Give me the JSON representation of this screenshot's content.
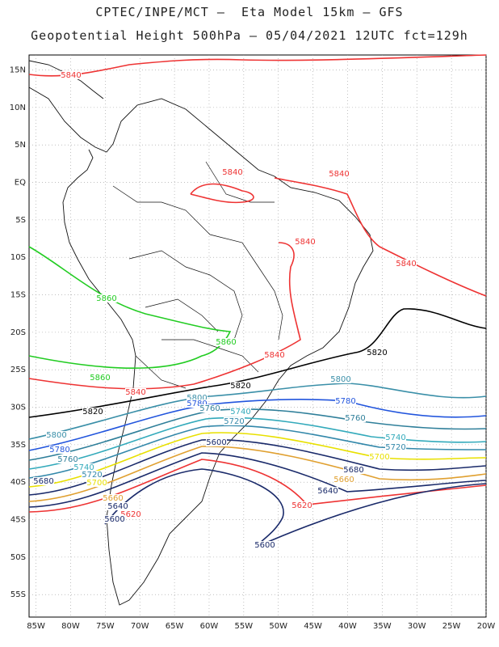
{
  "header": {
    "line1": "CPTEC/INPE/MCT –  Eta Model 15km – GFS",
    "line2": "Geopotential Height 500hPa – 05/04/2021 12UTC fct=129h"
  },
  "axes": {
    "lon_labels": [
      "85W",
      "80W",
      "75W",
      "70W",
      "65W",
      "60W",
      "55W",
      "50W",
      "45W",
      "40W",
      "35W",
      "30W",
      "25W",
      "20W"
    ],
    "lat_labels": [
      "15N",
      "10N",
      "5N",
      "EQ",
      "5S",
      "10S",
      "15S",
      "20S",
      "25S",
      "30S",
      "35S",
      "40S",
      "45S",
      "50S",
      "55S"
    ]
  },
  "map_data": {
    "type": "contour",
    "variable": "Geopotential Height 500hPa",
    "lon_range": [
      -86,
      -20
    ],
    "lat_range": [
      -58,
      17
    ],
    "grid": true,
    "contours": [
      {
        "level": "5840",
        "color": "#ee3333",
        "labels": [
          "5840",
          "5840",
          "5840",
          "5840",
          "5840",
          "5840",
          "5840"
        ]
      },
      {
        "level": "5820",
        "color": "#000000",
        "labels": [
          "5820",
          "5820",
          "5820"
        ]
      },
      {
        "level": "5860",
        "color": "#22cc22",
        "labels": [
          "5860",
          "5860",
          "5860"
        ]
      },
      {
        "level": "5800",
        "color": "#3a8fa8",
        "labels": [
          "5800",
          "5800",
          "5800"
        ]
      },
      {
        "level": "5780",
        "color": "#2255dd",
        "labels": [
          "5780",
          "5780",
          "5780"
        ]
      },
      {
        "level": "5760",
        "color": "#2f7f9a",
        "labels": [
          "5760",
          "5760",
          "5760"
        ]
      },
      {
        "level": "5740",
        "color": "#33aabb",
        "labels": [
          "5740",
          "5740",
          "5740"
        ]
      },
      {
        "level": "5720",
        "color": "#3388aa",
        "labels": [
          "5720",
          "5720",
          "5720"
        ]
      },
      {
        "level": "5700",
        "color": "#e8e000",
        "labels": [
          "5700",
          "5700"
        ]
      },
      {
        "level": "5680",
        "color": "#1a2a6a",
        "labels": [
          "5680",
          "5680"
        ]
      },
      {
        "level": "5660",
        "color": "#e0a030",
        "labels": [
          "5660",
          "5660"
        ]
      },
      {
        "level": "5640",
        "color": "#1a2a6a",
        "labels": [
          "5640",
          "5640"
        ]
      },
      {
        "level": "5620",
        "color": "#ee3333",
        "labels": [
          "5620",
          "5620"
        ]
      },
      {
        "level": "5600",
        "color": "#1a2a6a",
        "labels": [
          "5600",
          "5600",
          "5600"
        ]
      }
    ]
  }
}
